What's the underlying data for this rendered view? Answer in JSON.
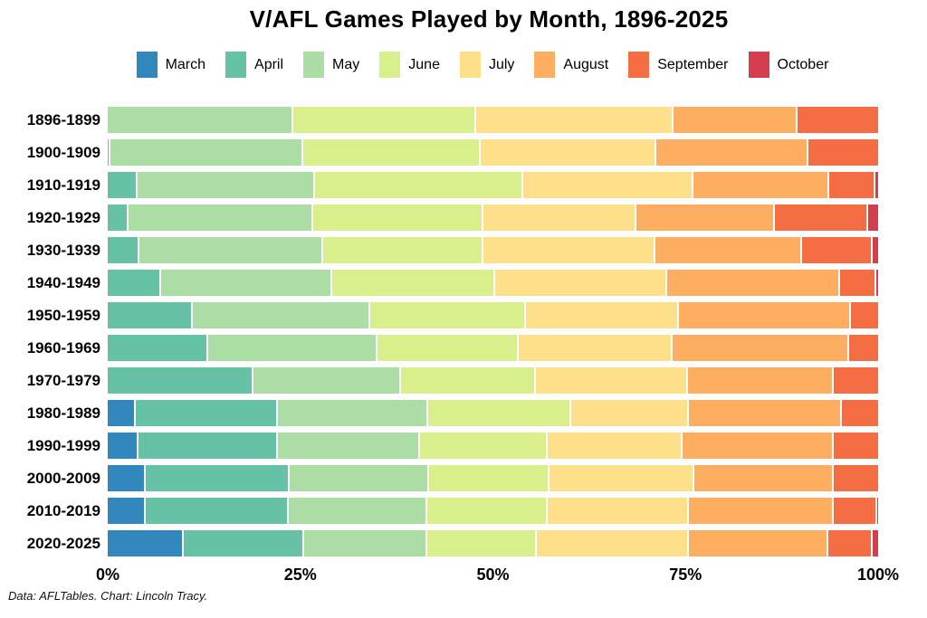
{
  "title": "V/AFL Games Played by Month, 1896-2025",
  "footer": "Data: AFLTables. Chart: Lincoln Tracy.",
  "chart_data": {
    "type": "bar",
    "stacked": true,
    "orientation": "horizontal",
    "unit": "percent",
    "title": "V/AFL Games Played by Month, 1896-2025",
    "legend_position": "top",
    "grid": false,
    "xlim": [
      0,
      100
    ],
    "x_tick_labels": [
      "0%",
      "25%",
      "50%",
      "75%",
      "100%"
    ],
    "x_tick_values": [
      0,
      25,
      50,
      75,
      100
    ],
    "categories": [
      "1896-1899",
      "1900-1909",
      "1910-1919",
      "1920-1929",
      "1930-1939",
      "1940-1949",
      "1950-1959",
      "1960-1969",
      "1970-1979",
      "1980-1989",
      "1990-1999",
      "2000-2009",
      "2010-2019",
      "2020-2025"
    ],
    "series": [
      {
        "name": "March",
        "color": "#3288bd",
        "values": [
          0,
          0,
          0,
          0,
          0,
          0,
          0,
          0,
          0,
          3.6,
          4.0,
          4.9,
          4.9,
          9.9
        ]
      },
      {
        "name": "April",
        "color": "#66c2a5",
        "values": [
          0,
          0.3,
          3.9,
          2.7,
          4.1,
          6.9,
          11.0,
          13.0,
          18.9,
          18.5,
          18.1,
          18.7,
          18.6,
          15.6
        ]
      },
      {
        "name": "May",
        "color": "#abdda4",
        "values": [
          24.1,
          25.1,
          23.0,
          24.0,
          23.9,
          22.3,
          23.1,
          22.0,
          19.2,
          19.5,
          18.4,
          18.1,
          18.0,
          16.0
        ]
      },
      {
        "name": "June",
        "color": "#d9ef8b",
        "values": [
          23.7,
          23.0,
          27.0,
          22.1,
          20.8,
          21.1,
          20.2,
          18.3,
          17.5,
          18.6,
          16.6,
          15.7,
          15.6,
          14.2
        ]
      },
      {
        "name": "July",
        "color": "#fee08b",
        "values": [
          25.7,
          22.8,
          22.1,
          19.8,
          22.3,
          22.3,
          19.9,
          20.0,
          19.7,
          15.3,
          17.5,
          18.7,
          18.4,
          19.8
        ]
      },
      {
        "name": "August",
        "color": "#fdae61",
        "values": [
          16.1,
          19.8,
          17.7,
          18.0,
          19.0,
          22.5,
          22.3,
          22.9,
          18.9,
          19.8,
          19.6,
          18.1,
          18.7,
          18.1
        ]
      },
      {
        "name": "September",
        "color": "#f46d43",
        "values": [
          10.4,
          9.0,
          6.0,
          12.1,
          9.2,
          4.7,
          3.5,
          3.8,
          5.8,
          4.7,
          5.8,
          5.8,
          5.7,
          5.7
        ]
      },
      {
        "name": "October",
        "color": "#d53e4f",
        "values": [
          0,
          0,
          0.3,
          1.3,
          0.7,
          0.2,
          0,
          0,
          0,
          0,
          0,
          0,
          0.1,
          0.7
        ]
      }
    ]
  }
}
